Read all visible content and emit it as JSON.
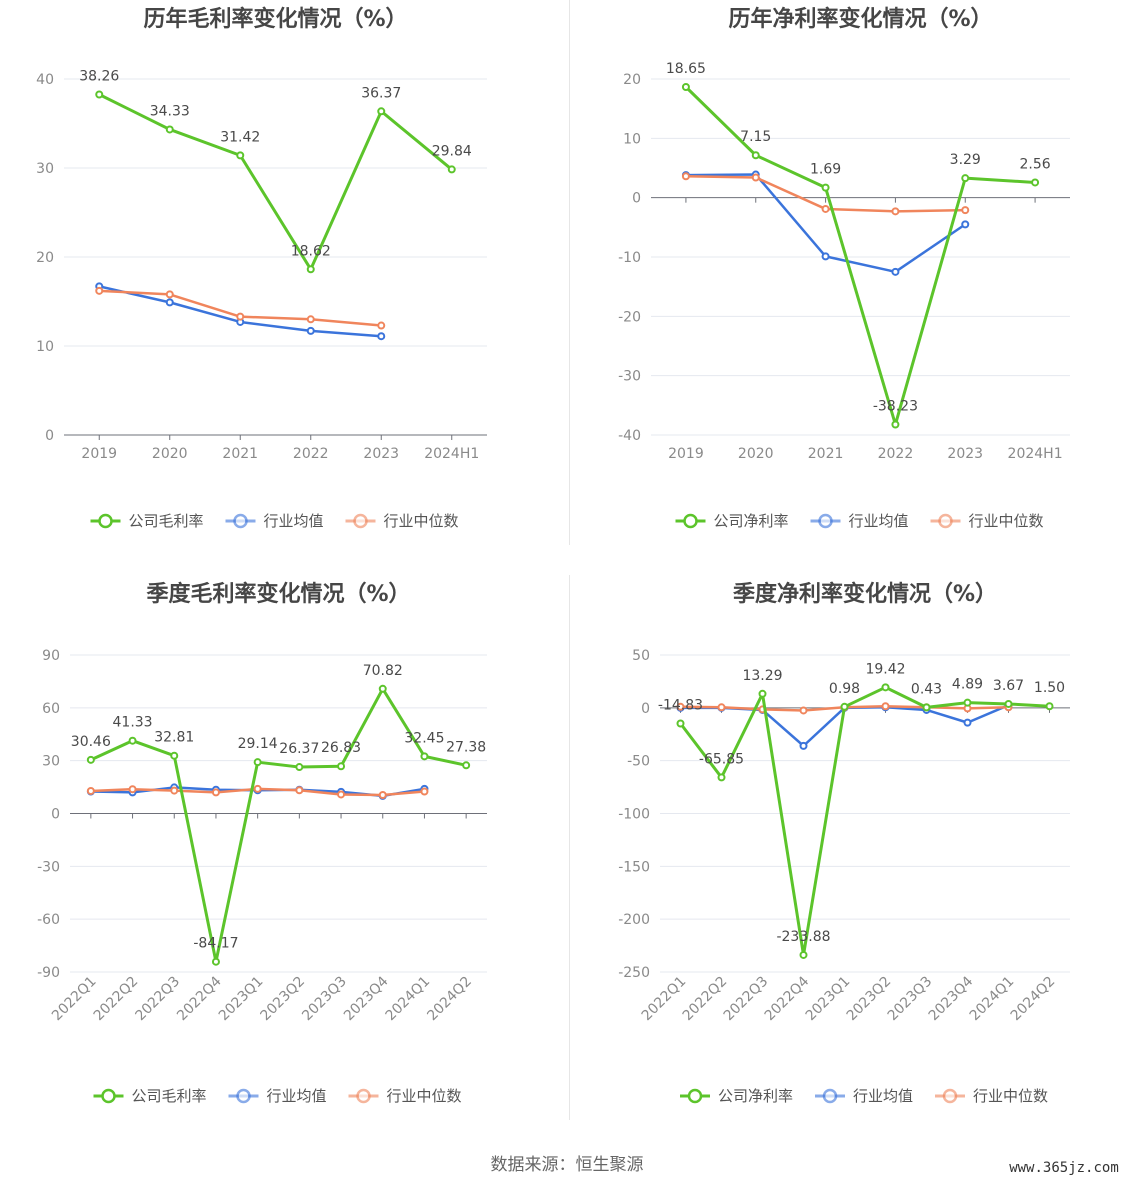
{
  "source_label": "数据来源：恒生聚源",
  "watermark": "www.365jz.com",
  "colors": {
    "company": "#5cc42b",
    "avg": "#3b74db",
    "median": "#f0855c",
    "grid": "#e5e8ef",
    "axis": "#6e7079"
  },
  "chart_data": [
    {
      "type": "line",
      "title": "历年毛利率变化情况（%）",
      "categories": [
        "2019",
        "2020",
        "2021",
        "2022",
        "2023",
        "2024H1"
      ],
      "ylim": [
        0,
        40
      ],
      "yticks": [
        0,
        10,
        20,
        30,
        40
      ],
      "grid": true,
      "legend_position": "bottom",
      "label_decimals": 2,
      "series": [
        {
          "name": "公司毛利率",
          "role": "company",
          "values": [
            38.26,
            34.33,
            31.42,
            18.62,
            36.37,
            29.84
          ],
          "labeled": true
        },
        {
          "name": "行业均值",
          "role": "avg",
          "values": [
            16.7,
            14.9,
            12.7,
            11.7,
            11.1,
            null
          ],
          "labeled": false
        },
        {
          "name": "行业中位数",
          "role": "median",
          "values": [
            16.2,
            15.8,
            13.3,
            13.0,
            12.3,
            null
          ],
          "labeled": false
        }
      ]
    },
    {
      "type": "line",
      "title": "历年净利率变化情况（%）",
      "categories": [
        "2019",
        "2020",
        "2021",
        "2022",
        "2023",
        "2024H1"
      ],
      "ylim": [
        -40,
        20
      ],
      "yticks": [
        -40,
        -30,
        -20,
        -10,
        0,
        10,
        20
      ],
      "grid": true,
      "legend_position": "bottom",
      "label_decimals": 2,
      "series": [
        {
          "name": "公司净利率",
          "role": "company",
          "values": [
            18.65,
            7.15,
            1.69,
            -38.23,
            3.29,
            2.56
          ],
          "labeled": true
        },
        {
          "name": "行业均值",
          "role": "avg",
          "values": [
            3.8,
            3.9,
            -9.9,
            -12.5,
            -4.5,
            null
          ],
          "labeled": false
        },
        {
          "name": "行业中位数",
          "role": "median",
          "values": [
            3.6,
            3.4,
            -1.9,
            -2.3,
            -2.1,
            null
          ],
          "labeled": false
        }
      ]
    },
    {
      "type": "line",
      "title": "季度毛利率变化情况（%）",
      "categories": [
        "2022Q1",
        "2022Q2",
        "2022Q3",
        "2022Q4",
        "2023Q1",
        "2023Q2",
        "2023Q3",
        "2023Q4",
        "2024Q1",
        "2024Q2"
      ],
      "ylim": [
        -90,
        90
      ],
      "yticks": [
        -90,
        -60,
        -30,
        0,
        30,
        60,
        90
      ],
      "grid": true,
      "rotate_x_labels": true,
      "legend_position": "bottom",
      "label_decimals": 2,
      "series": [
        {
          "name": "公司毛利率",
          "role": "company",
          "values": [
            30.46,
            41.33,
            32.81,
            -84.17,
            29.14,
            26.37,
            26.83,
            70.82,
            32.45,
            27.38
          ],
          "labeled": true
        },
        {
          "name": "行业均值",
          "role": "avg",
          "values": [
            12.5,
            12.0,
            14.8,
            13.5,
            13.2,
            13.5,
            12.3,
            10.0,
            14.0,
            null
          ],
          "labeled": false
        },
        {
          "name": "行业中位数",
          "role": "median",
          "values": [
            12.8,
            13.8,
            13.0,
            12.0,
            14.0,
            13.2,
            10.8,
            10.5,
            12.5,
            null
          ],
          "labeled": false
        }
      ]
    },
    {
      "type": "line",
      "title": "季度净利率变化情况（%）",
      "categories": [
        "2022Q1",
        "2022Q2",
        "2022Q3",
        "2022Q4",
        "2023Q1",
        "2023Q2",
        "2023Q3",
        "2023Q4",
        "2024Q1",
        "2024Q2"
      ],
      "ylim": [
        -250,
        50
      ],
      "yticks": [
        -250,
        -200,
        -150,
        -100,
        -50,
        0,
        50
      ],
      "grid": true,
      "rotate_x_labels": true,
      "legend_position": "bottom",
      "label_decimals": 2,
      "series": [
        {
          "name": "公司净利率",
          "role": "company",
          "values": [
            -14.83,
            -65.85,
            13.29,
            -233.88,
            0.98,
            19.42,
            0.43,
            4.89,
            3.67,
            1.5
          ],
          "labeled": true
        },
        {
          "name": "行业均值",
          "role": "avg",
          "values": [
            0.0,
            0.0,
            -2.0,
            -36.0,
            0.0,
            0.5,
            -2.0,
            -14.0,
            2.5,
            null
          ],
          "labeled": false
        },
        {
          "name": "行业中位数",
          "role": "median",
          "values": [
            1.0,
            0.5,
            -1.5,
            -2.5,
            0.5,
            1.5,
            0.5,
            -0.5,
            0.5,
            null
          ],
          "labeled": false
        }
      ]
    }
  ]
}
